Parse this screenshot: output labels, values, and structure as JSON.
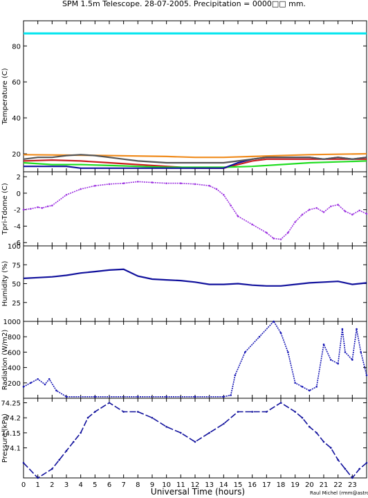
{
  "title": "SPM 1.5m Telescope. 28-07-2005. Precipitation = 0000□□ mm.",
  "xlabel": "Universal Time (hours)",
  "credit": "Raul Michel (rmm@astrosen.unam.mx)",
  "colors": {
    "cyan": "#00e5ee",
    "orange": "#f08c1e",
    "red": "#c81e1e",
    "green": "#22dd22",
    "navy": "#10109c",
    "gray": "#555555",
    "purple": "#9b30e0",
    "blue": "#1414b4"
  },
  "chart_data": [
    {
      "type": "line",
      "ylabel": "Temperature (C)",
      "xlim": [
        0,
        24
      ],
      "ylim": [
        10,
        94
      ],
      "xticks": [
        "0",
        "1",
        "2",
        "3",
        "4",
        "5",
        "6",
        "7",
        "8",
        "9",
        "10",
        "11",
        "12",
        "13",
        "14",
        "15",
        "16",
        "17",
        "18",
        "19",
        "20",
        "21",
        "22",
        "23"
      ],
      "yticks": [
        "20",
        "40",
        "60",
        "80"
      ],
      "series": [
        {
          "color": "cyan",
          "x": [
            0,
            24
          ],
          "y": [
            87,
            87
          ]
        },
        {
          "color": "orange",
          "x": [
            0,
            6,
            10,
            12,
            14,
            16,
            20,
            24
          ],
          "y": [
            19.5,
            19,
            18.5,
            18,
            18,
            18.5,
            19.5,
            20
          ]
        },
        {
          "color": "red",
          "x": [
            0,
            2,
            4,
            6,
            8,
            10,
            12,
            14,
            15,
            16,
            17,
            18,
            19,
            20,
            21,
            22,
            23,
            24
          ],
          "y": [
            16,
            16.5,
            16,
            15,
            14,
            13,
            12,
            12,
            14,
            16,
            17,
            17,
            17,
            17,
            17,
            17,
            17,
            17
          ]
        },
        {
          "color": "green",
          "x": [
            0,
            2,
            4,
            6,
            8,
            10,
            12,
            14,
            16,
            18,
            20,
            22,
            24
          ],
          "y": [
            15,
            14,
            14,
            13.5,
            13,
            12.5,
            12.5,
            12.5,
            13,
            14,
            15,
            15.5,
            16
          ]
        },
        {
          "color": "navy",
          "x": [
            0,
            2,
            3,
            4,
            6,
            8,
            10,
            12,
            13,
            14,
            15,
            16,
            17,
            18,
            19,
            20,
            21,
            22,
            23,
            24
          ],
          "y": [
            13,
            13,
            13,
            12,
            12,
            12,
            12,
            12,
            12,
            12,
            15,
            17,
            18,
            18,
            18,
            18,
            17,
            18,
            17,
            18
          ]
        },
        {
          "color": "gray",
          "x": [
            0,
            1,
            2,
            3,
            4,
            5,
            6,
            7,
            8,
            10,
            12,
            13,
            14,
            15,
            16,
            17,
            18,
            19,
            20,
            21,
            22,
            23,
            24
          ],
          "y": [
            17,
            18,
            18,
            19,
            19.5,
            19,
            18,
            17,
            16,
            15,
            15,
            15,
            15,
            16,
            17,
            18,
            18,
            18,
            18,
            17,
            18,
            17,
            18
          ]
        }
      ]
    },
    {
      "type": "scatter",
      "ylabel": "Tpri-Tdome (C)",
      "xlim": [
        0,
        24
      ],
      "ylim": [
        -6.4,
        2.6
      ],
      "yticks": [
        "2",
        "0",
        "-2",
        "-4",
        "-6"
      ],
      "series": [
        {
          "color": "purple",
          "x": [
            0,
            0.5,
            1,
            1.3,
            1.7,
            2,
            3,
            4,
            5,
            6,
            7,
            8,
            9,
            10,
            11,
            12,
            13,
            13.5,
            14,
            14.5,
            15,
            16,
            17,
            17.5,
            18,
            18.5,
            19,
            19.5,
            20,
            20.5,
            21,
            21.5,
            22,
            22.5,
            23,
            23.5,
            24
          ],
          "y": [
            -2,
            -1.9,
            -1.7,
            -1.8,
            -1.6,
            -1.5,
            -0.2,
            0.5,
            0.9,
            1.1,
            1.2,
            1.4,
            1.3,
            1.2,
            1.2,
            1.1,
            0.9,
            0.5,
            -0.2,
            -1.5,
            -2.8,
            -3.8,
            -4.8,
            -5.5,
            -5.6,
            -4.8,
            -3.5,
            -2.6,
            -2,
            -1.8,
            -2.3,
            -1.6,
            -1.4,
            -2.2,
            -2.6,
            -2.1,
            -2.5
          ]
        }
      ]
    },
    {
      "type": "line",
      "ylabel": "Humidity (%)",
      "xlim": [
        0,
        24
      ],
      "ylim": [
        0,
        100
      ],
      "yticks": [
        "25",
        "50",
        "75",
        "100"
      ],
      "series": [
        {
          "color": "navy",
          "x": [
            0,
            1,
            2,
            3,
            4,
            5,
            6,
            7,
            8,
            9,
            10,
            11,
            12,
            13,
            14,
            15,
            16,
            17,
            18,
            19,
            20,
            21,
            22,
            23,
            24
          ],
          "y": [
            57,
            58,
            59,
            61,
            64,
            66,
            68,
            69,
            60,
            56,
            55,
            54,
            52,
            49,
            49,
            50,
            48,
            47,
            47,
            49,
            51,
            52,
            53,
            49,
            51
          ]
        }
      ]
    },
    {
      "type": "scatter",
      "ylabel": "Radiation (W/m2)",
      "xlim": [
        0,
        24
      ],
      "ylim": [
        0,
        1000
      ],
      "yticks": [
        "200",
        "400",
        "600",
        "800",
        "1000"
      ],
      "series": [
        {
          "color": "blue",
          "x": [
            0,
            0.5,
            1,
            1.5,
            1.8,
            2.3,
            3,
            5,
            8,
            10,
            12,
            14,
            14.5,
            14.8,
            15.5,
            16.5,
            17.5,
            18,
            18.5,
            19,
            19.5,
            20,
            20.5,
            21,
            21.5,
            22,
            22.3,
            22.5,
            23,
            23.3,
            23.6,
            24
          ],
          "y": [
            150,
            200,
            250,
            180,
            250,
            100,
            20,
            20,
            20,
            20,
            20,
            20,
            40,
            300,
            600,
            800,
            1000,
            850,
            600,
            200,
            150,
            100,
            150,
            700,
            500,
            450,
            900,
            600,
            500,
            900,
            600,
            300
          ]
        }
      ]
    },
    {
      "type": "scatter",
      "ylabel": "Pressure (kPa)",
      "xlim": [
        0,
        24
      ],
      "ylim": [
        74.0,
        74.265
      ],
      "yticks": [
        "74.1",
        "74.15",
        "74.2",
        "74.25"
      ],
      "series": [
        {
          "color": "navy",
          "x": [
            0,
            1,
            2,
            2.5,
            3,
            3.5,
            4,
            4.5,
            5,
            6,
            7,
            8,
            9,
            10,
            11,
            12,
            13,
            14,
            15,
            16,
            17,
            18,
            19,
            19.5,
            20,
            20.5,
            21,
            21.5,
            22,
            22.5,
            23,
            23.5,
            24
          ],
          "y": [
            74.05,
            74.0,
            74.03,
            74.06,
            74.09,
            74.12,
            74.15,
            74.2,
            74.22,
            74.25,
            74.22,
            74.22,
            74.2,
            74.17,
            74.15,
            74.12,
            74.15,
            74.18,
            74.22,
            74.22,
            74.22,
            74.25,
            74.22,
            74.2,
            74.17,
            74.15,
            74.12,
            74.1,
            74.06,
            74.03,
            74.0,
            74.03,
            74.05
          ]
        }
      ]
    }
  ]
}
